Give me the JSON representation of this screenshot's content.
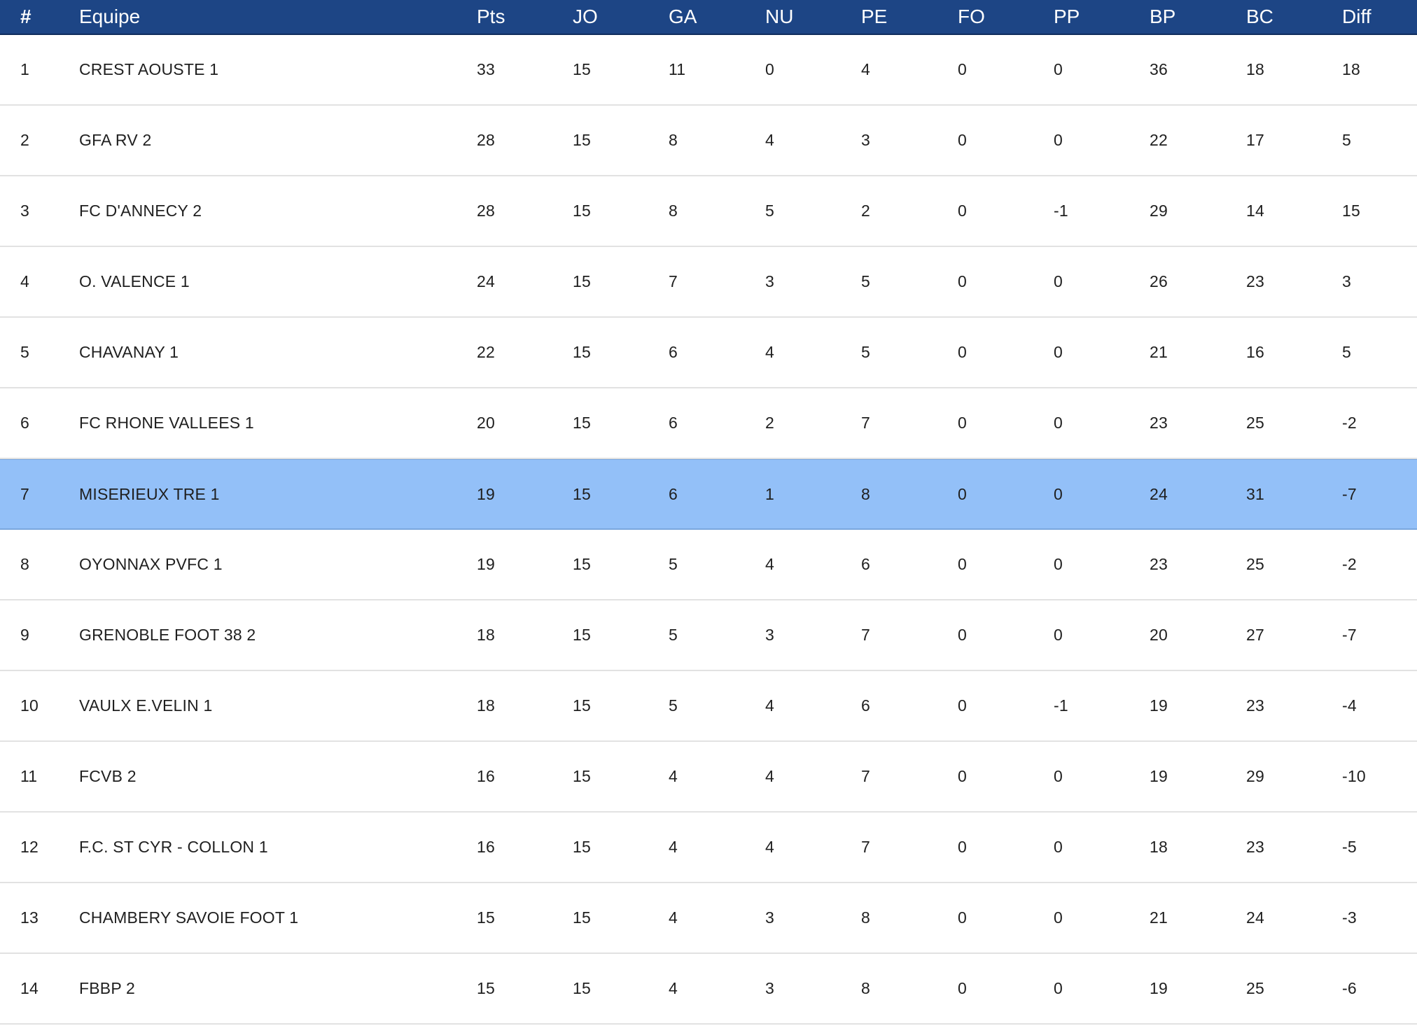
{
  "table": {
    "headers": {
      "rank": "#",
      "team": "Equipe",
      "pts": "Pts",
      "jo": "JO",
      "ga": "GA",
      "nu": "NU",
      "pe": "PE",
      "fo": "FO",
      "pp": "PP",
      "bp": "BP",
      "bc": "BC",
      "diff": "Diff"
    },
    "highlight_color": "#93c0f8",
    "header_color": "#1d4585",
    "highlighted_rank": "7",
    "rows": [
      {
        "rank": "1",
        "team": "CREST AOUSTE 1",
        "pts": "33",
        "jo": "15",
        "ga": "11",
        "nu": "0",
        "pe": "4",
        "fo": "0",
        "pp": "0",
        "bp": "36",
        "bc": "18",
        "diff": "18"
      },
      {
        "rank": "2",
        "team": "GFA RV 2",
        "pts": "28",
        "jo": "15",
        "ga": "8",
        "nu": "4",
        "pe": "3",
        "fo": "0",
        "pp": "0",
        "bp": "22",
        "bc": "17",
        "diff": "5"
      },
      {
        "rank": "3",
        "team": "FC D'ANNECY 2",
        "pts": "28",
        "jo": "15",
        "ga": "8",
        "nu": "5",
        "pe": "2",
        "fo": "0",
        "pp": "-1",
        "bp": "29",
        "bc": "14",
        "diff": "15"
      },
      {
        "rank": "4",
        "team": "O. VALENCE 1",
        "pts": "24",
        "jo": "15",
        "ga": "7",
        "nu": "3",
        "pe": "5",
        "fo": "0",
        "pp": "0",
        "bp": "26",
        "bc": "23",
        "diff": "3"
      },
      {
        "rank": "5",
        "team": "CHAVANAY 1",
        "pts": "22",
        "jo": "15",
        "ga": "6",
        "nu": "4",
        "pe": "5",
        "fo": "0",
        "pp": "0",
        "bp": "21",
        "bc": "16",
        "diff": "5"
      },
      {
        "rank": "6",
        "team": "FC RHONE VALLEES 1",
        "pts": "20",
        "jo": "15",
        "ga": "6",
        "nu": "2",
        "pe": "7",
        "fo": "0",
        "pp": "0",
        "bp": "23",
        "bc": "25",
        "diff": "-2"
      },
      {
        "rank": "7",
        "team": "MISERIEUX TRE 1",
        "pts": "19",
        "jo": "15",
        "ga": "6",
        "nu": "1",
        "pe": "8",
        "fo": "0",
        "pp": "0",
        "bp": "24",
        "bc": "31",
        "diff": "-7"
      },
      {
        "rank": "8",
        "team": "OYONNAX PVFC 1",
        "pts": "19",
        "jo": "15",
        "ga": "5",
        "nu": "4",
        "pe": "6",
        "fo": "0",
        "pp": "0",
        "bp": "23",
        "bc": "25",
        "diff": "-2"
      },
      {
        "rank": "9",
        "team": "GRENOBLE FOOT 38 2",
        "pts": "18",
        "jo": "15",
        "ga": "5",
        "nu": "3",
        "pe": "7",
        "fo": "0",
        "pp": "0",
        "bp": "20",
        "bc": "27",
        "diff": "-7"
      },
      {
        "rank": "10",
        "team": "VAULX E.VELIN 1",
        "pts": "18",
        "jo": "15",
        "ga": "5",
        "nu": "4",
        "pe": "6",
        "fo": "0",
        "pp": "-1",
        "bp": "19",
        "bc": "23",
        "diff": "-4"
      },
      {
        "rank": "11",
        "team": "FCVB 2",
        "pts": "16",
        "jo": "15",
        "ga": "4",
        "nu": "4",
        "pe": "7",
        "fo": "0",
        "pp": "0",
        "bp": "19",
        "bc": "29",
        "diff": "-10"
      },
      {
        "rank": "12",
        "team": "F.C. ST CYR - COLLON 1",
        "pts": "16",
        "jo": "15",
        "ga": "4",
        "nu": "4",
        "pe": "7",
        "fo": "0",
        "pp": "0",
        "bp": "18",
        "bc": "23",
        "diff": "-5"
      },
      {
        "rank": "13",
        "team": "CHAMBERY SAVOIE FOOT 1",
        "pts": "15",
        "jo": "15",
        "ga": "4",
        "nu": "3",
        "pe": "8",
        "fo": "0",
        "pp": "0",
        "bp": "21",
        "bc": "24",
        "diff": "-3"
      },
      {
        "rank": "14",
        "team": "FBBP 2",
        "pts": "15",
        "jo": "15",
        "ga": "4",
        "nu": "3",
        "pe": "8",
        "fo": "0",
        "pp": "0",
        "bp": "19",
        "bc": "25",
        "diff": "-6"
      }
    ]
  }
}
